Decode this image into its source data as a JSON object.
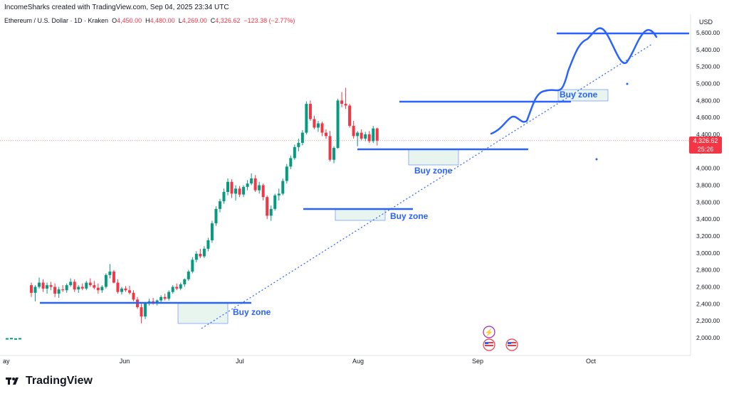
{
  "header": {
    "created_by": "IncomeSharks created with TradingView.com, Sep 04, 2025 23:34 UTC"
  },
  "ohlc": {
    "symbol": "Ethereum / U.S. Dollar · 1D · Kraken",
    "o_label": "O",
    "o_value": "4,450.00",
    "h_label": "H",
    "h_value": "4,480.00",
    "l_label": "L",
    "l_value": "4,269.00",
    "c_label": "C",
    "c_value": "4,326.62",
    "change": "−123.38 (−2.77%)"
  },
  "price_axis": {
    "currency": "USD"
  },
  "last_price": {
    "price": "4,326.62",
    "countdown": "25:26"
  },
  "annotations": [
    "Buy zone",
    "Buy zone",
    "Buy zone",
    "Buy zone"
  ],
  "footer": {
    "brand": "TradingView"
  },
  "colors": {
    "up": "#089981",
    "down": "#f23645",
    "drawing": "#2962ff",
    "zone_fill": "#e3f2eb"
  },
  "chart_data": {
    "type": "candlestick",
    "y_ticks": [
      "5,600.00",
      "5,400.00",
      "5,200.00",
      "5,000.00",
      "4,800.00",
      "4,600.00",
      "4,400.00",
      "4,200.00",
      "4,000.00",
      "3,800.00",
      "3,600.00",
      "3,400.00",
      "3,200.00",
      "3,000.00",
      "2,800.00",
      "2,600.00",
      "2,400.00",
      "2,200.00",
      "2,000.00"
    ],
    "x_ticks": [
      "ay",
      "Jun",
      "Jul",
      "Aug",
      "Sep",
      "Oct"
    ],
    "ylim": [
      1850,
      5700
    ],
    "candles": [
      [
        2620,
        2650,
        2480,
        2530
      ],
      [
        2530,
        2620,
        2430,
        2600
      ],
      [
        2600,
        2710,
        2580,
        2650
      ],
      [
        2650,
        2690,
        2540,
        2580
      ],
      [
        2580,
        2650,
        2520,
        2620
      ],
      [
        2620,
        2660,
        2560,
        2600
      ],
      [
        2600,
        2640,
        2480,
        2520
      ],
      [
        2520,
        2600,
        2470,
        2570
      ],
      [
        2570,
        2620,
        2540,
        2560
      ],
      [
        2560,
        2640,
        2530,
        2620
      ],
      [
        2620,
        2700,
        2600,
        2660
      ],
      [
        2660,
        2690,
        2540,
        2570
      ],
      [
        2570,
        2620,
        2530,
        2600
      ],
      [
        2600,
        2640,
        2560,
        2580
      ],
      [
        2580,
        2670,
        2560,
        2650
      ],
      [
        2650,
        2700,
        2600,
        2620
      ],
      [
        2620,
        2670,
        2570,
        2590
      ],
      [
        2590,
        2640,
        2520,
        2560
      ],
      [
        2560,
        2620,
        2530,
        2600
      ],
      [
        2600,
        2760,
        2580,
        2740
      ],
      [
        2740,
        2870,
        2700,
        2780
      ],
      [
        2780,
        2800,
        2640,
        2650
      ],
      [
        2650,
        2690,
        2520,
        2540
      ],
      [
        2540,
        2600,
        2510,
        2580
      ],
      [
        2580,
        2610,
        2540,
        2560
      ],
      [
        2560,
        2610,
        2510,
        2530
      ],
      [
        2530,
        2560,
        2430,
        2450
      ],
      [
        2450,
        2480,
        2340,
        2360
      ],
      [
        2360,
        2400,
        2170,
        2250
      ],
      [
        2250,
        2420,
        2220,
        2410
      ],
      [
        2410,
        2460,
        2380,
        2430
      ],
      [
        2430,
        2470,
        2390,
        2410
      ],
      [
        2410,
        2450,
        2380,
        2440
      ],
      [
        2440,
        2500,
        2420,
        2480
      ],
      [
        2480,
        2520,
        2440,
        2460
      ],
      [
        2460,
        2560,
        2440,
        2540
      ],
      [
        2540,
        2620,
        2520,
        2600
      ],
      [
        2600,
        2640,
        2560,
        2580
      ],
      [
        2580,
        2650,
        2560,
        2630
      ],
      [
        2630,
        2700,
        2600,
        2690
      ],
      [
        2690,
        2800,
        2670,
        2780
      ],
      [
        2780,
        2950,
        2760,
        2920
      ],
      [
        2920,
        3020,
        2890,
        2990
      ],
      [
        2990,
        3050,
        2940,
        2960
      ],
      [
        2960,
        3080,
        2940,
        3050
      ],
      [
        3050,
        3180,
        3020,
        3150
      ],
      [
        3150,
        3380,
        3120,
        3350
      ],
      [
        3350,
        3550,
        3320,
        3520
      ],
      [
        3520,
        3640,
        3480,
        3610
      ],
      [
        3610,
        3760,
        3580,
        3720
      ],
      [
        3720,
        3880,
        3680,
        3840
      ],
      [
        3840,
        3870,
        3650,
        3700
      ],
      [
        3700,
        3800,
        3620,
        3760
      ],
      [
        3760,
        3790,
        3660,
        3690
      ],
      [
        3690,
        3800,
        3660,
        3780
      ],
      [
        3780,
        3860,
        3740,
        3820
      ],
      [
        3820,
        3940,
        3800,
        3880
      ],
      [
        3880,
        3920,
        3720,
        3740
      ],
      [
        3740,
        3840,
        3700,
        3800
      ],
      [
        3800,
        3820,
        3620,
        3660
      ],
      [
        3660,
        3680,
        3400,
        3440
      ],
      [
        3440,
        3560,
        3380,
        3520
      ],
      [
        3520,
        3700,
        3500,
        3680
      ],
      [
        3680,
        3760,
        3620,
        3700
      ],
      [
        3700,
        3880,
        3680,
        3850
      ],
      [
        3850,
        4050,
        3820,
        4020
      ],
      [
        4020,
        4150,
        3990,
        4120
      ],
      [
        4120,
        4280,
        4100,
        4250
      ],
      [
        4250,
        4350,
        4200,
        4300
      ],
      [
        4300,
        4450,
        4270,
        4420
      ],
      [
        4420,
        4790,
        4400,
        4760
      ],
      [
        4760,
        4800,
        4560,
        4580
      ],
      [
        4580,
        4620,
        4460,
        4480
      ],
      [
        4480,
        4560,
        4430,
        4530
      ],
      [
        4530,
        4550,
        4380,
        4420
      ],
      [
        4420,
        4460,
        4350,
        4380
      ],
      [
        4380,
        4440,
        4080,
        4100
      ],
      [
        4100,
        4260,
        4060,
        4240
      ],
      [
        4240,
        4820,
        4230,
        4800
      ],
      [
        4800,
        4900,
        4720,
        4760
      ],
      [
        4760,
        4950,
        4700,
        4740
      ],
      [
        4740,
        4760,
        4480,
        4500
      ],
      [
        4500,
        4560,
        4350,
        4380
      ],
      [
        4380,
        4440,
        4260,
        4420
      ],
      [
        4420,
        4460,
        4330,
        4350
      ],
      [
        4350,
        4430,
        4320,
        4400
      ],
      [
        4400,
        4440,
        4300,
        4320
      ],
      [
        4320,
        4500,
        4300,
        4470
      ],
      [
        4470,
        4480,
        4269,
        4326.62
      ]
    ],
    "price_line": 4326.62
  }
}
